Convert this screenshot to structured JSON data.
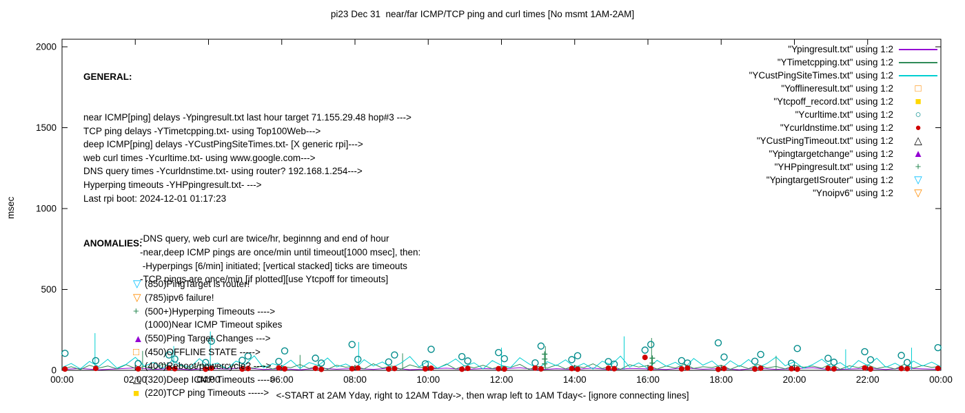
{
  "page": {
    "title": "pi23 Dec 31  near/far ICMP/TCP ping and curl times [No msmt 1AM-2AM]"
  },
  "axes": {
    "ylabel": "msec",
    "xlabel": "<-START at 2AM Yday, right to 12AM Tday->, then wrap left to 1AM Tday<- [ignore connecting lines]",
    "x_ticks": [
      "00:00",
      "02:00",
      "04:00",
      "06:00",
      "08:00",
      "10:00",
      "12:00",
      "14:00",
      "16:00",
      "18:00",
      "20:00",
      "22:00",
      "00:00"
    ],
    "y_ticks": [
      0,
      500,
      1000,
      1500,
      2000
    ]
  },
  "general": {
    "heading": "GENERAL:",
    "lines": [
      "near ICMP[ping] delays -Ypingresult.txt last hour target 71.155.29.48 hop#3 --->",
      "TCP ping delays -YTimetcpping.txt- using Top100Web--->",
      "deep ICMP[ping] delays -YCustPingSiteTimes.txt- [X generic rpi]--->",
      "web curl times -Ycurltime.txt- using www.google.com--->",
      "DNS query times -Ycurldnstime.txt- using router? 192.168.1.254--->",
      "Hyperping timeouts -YHPpingresult.txt- --->",
      "Last rpi boot: 2024-12-01 01:17:23"
    ],
    "notes": [
      "-DNS query, web curl are twice/hr, beginnng and end of hour",
      "-near,deep ICMP pings are once/min until timeout[1000 msec], then:",
      " -Hyperpings [6/min] initiated; [vertical stacked] ticks are timeouts",
      "-TCP pings are once/min [if plotted][use Ytcpoff for timeouts]"
    ]
  },
  "anomalies": {
    "heading": "ANOMALIES:",
    "items": [
      {
        "marker": "triangle-down-open",
        "color": "#00BFFF",
        "text": "(850)PingTarget is router!"
      },
      {
        "marker": "triangle-down-open",
        "color": "#FF8C00",
        "text": "(785)ipv6 failure!"
      },
      {
        "marker": "plus",
        "color": "#2E8B57",
        "text": "(500+)Hyperping Timeouts ---->"
      },
      {
        "marker": "none",
        "color": "",
        "text": "(1000)Near ICMP Timeout spikes"
      },
      {
        "marker": "triangle-filled",
        "color": "#9400D3",
        "text": "(550)Ping Target Changes --->"
      },
      {
        "marker": "square-open",
        "color": "#FF8C00",
        "text": "(450)OFFLINE STATE ----->"
      },
      {
        "marker": "none",
        "color": "",
        "text": "(400)Reboot/powercycle? ---->"
      },
      {
        "marker": "triangle-open",
        "color": "#000000",
        "text": "(320)Deep ICMP Timeouts ---->"
      },
      {
        "marker": "square-filled",
        "color": "#FFD700",
        "text": "(220)TCP ping Timeouts ----->"
      }
    ]
  },
  "legend": {
    "entries": [
      {
        "label": "\"Ypingresult.txt\" using 1:2",
        "sample": "line",
        "color": "#9400D3"
      },
      {
        "label": "\"YTimetcpping.txt\" using 1:2",
        "sample": "line",
        "color": "#2E8B57"
      },
      {
        "label": "\"YCustPingSiteTimes.txt\" using 1:2",
        "sample": "line",
        "color": "#00CED1"
      },
      {
        "label": "\"Yofflineresult.txt\" using 1:2",
        "sample": "square-open",
        "color": "#FF8C00"
      },
      {
        "label": "\"Ytcpoff_record.txt\" using 1:2",
        "sample": "square-filled",
        "color": "#FFD700"
      },
      {
        "label": "\"Ycurltime.txt\" using 1:2",
        "sample": "circle-open",
        "color": "#008B8B"
      },
      {
        "label": "\"Ycurldnstime.txt\" using 1:2",
        "sample": "circle-filled",
        "color": "#D00000"
      },
      {
        "label": "\"YCustPingTimeout.txt\" using 1:2",
        "sample": "triangle-open",
        "color": "#000000"
      },
      {
        "label": "\"Ypingtargetchange\" using 1:2",
        "sample": "triangle-filled",
        "color": "#9400D3"
      },
      {
        "label": "\"YHPpingresult.txt\" using 1:2",
        "sample": "plus",
        "color": "#2E8B57"
      },
      {
        "label": "\"YpingtargetISrouter\" using 1:2",
        "sample": "triangle-down-open",
        "color": "#00BFFF"
      },
      {
        "label": "\"Ynoipv6\" using 1:2",
        "sample": "triangle-down-open",
        "color": "#FF8C00"
      }
    ]
  },
  "chart_data": {
    "type": "line+scatter",
    "title": "pi23 Dec 31  near/far ICMP/TCP ping and curl times [No msmt 1AM-2AM]",
    "xlabel": "<-START at 2AM Yday, right to 12AM Tday->, then wrap left to 1AM Tday<- [ignore connecting lines]",
    "ylabel": "msec",
    "ylim": [
      0,
      2000
    ],
    "xlim_hours": [
      0,
      24
    ],
    "grid": false,
    "legend_position": "top-right-outside-style",
    "series": [
      {
        "name": "Ypingresult near ICMP ping delays",
        "style": "line",
        "color": "#9400D3",
        "values": [
          5,
          12,
          3,
          9,
          15,
          6,
          11,
          4,
          13,
          8,
          16,
          5,
          10,
          3,
          14,
          7,
          12,
          6,
          15,
          4,
          9,
          13,
          5,
          11,
          8,
          16,
          3,
          10,
          6,
          14,
          4,
          12,
          9,
          5,
          15,
          7,
          11,
          3,
          13,
          6,
          10,
          16,
          4,
          8,
          12,
          5,
          14,
          9,
          6
        ]
      },
      {
        "name": "YTimetcpping TCP ping delays",
        "style": "line",
        "color": "#2E8B57",
        "values": [
          8,
          22,
          5,
          31,
          14,
          27,
          9,
          35,
          12,
          24,
          6,
          40,
          18,
          29,
          7,
          33,
          15,
          26,
          10,
          38,
          20,
          13,
          30,
          8,
          25,
          16,
          36,
          11,
          28,
          6,
          32,
          19,
          24,
          9,
          41,
          14,
          27,
          7,
          34,
          17,
          23,
          12,
          39,
          8,
          29,
          15,
          31,
          10,
          26,
          18,
          37,
          6,
          24,
          13,
          33,
          9,
          28,
          16,
          40,
          11,
          25,
          7,
          35,
          20,
          30,
          8,
          27,
          14,
          38,
          12,
          22,
          17,
          32,
          6,
          29,
          10,
          36,
          15,
          24,
          9,
          31,
          19,
          26,
          13,
          41,
          7,
          28,
          16,
          34,
          11,
          23,
          8,
          37,
          14,
          30,
          18,
          25
        ],
        "spikes": [
          [
            2.2,
            120
          ],
          [
            6.5,
            95
          ],
          [
            9.3,
            105
          ],
          [
            13.2,
            150
          ],
          [
            16.1,
            200
          ],
          [
            19.5,
            90
          ]
        ]
      },
      {
        "name": "YCustPingSiteTimes deep ICMP ping delays",
        "style": "line",
        "color": "#00CED1",
        "values": [
          18,
          42,
          9,
          55,
          23,
          68,
          14,
          37,
          80,
          26,
          49,
          11,
          61,
          33,
          19,
          72,
          28,
          45,
          8,
          57,
          36,
          90,
          16,
          41,
          24,
          63,
          12,
          48,
          30,
          76,
          21,
          39,
          10,
          66,
          27,
          52,
          15,
          44,
          85,
          22,
          58,
          13,
          35,
          70,
          25,
          47,
          9,
          60,
          31,
          18,
          78,
          40,
          12,
          53,
          29,
          65,
          17,
          43,
          8,
          56,
          34,
          88,
          20,
          46,
          11,
          62,
          26,
          50,
          14,
          73,
          32,
          58,
          10,
          59,
          24,
          67,
          16,
          42,
          82,
          28,
          54,
          12,
          36,
          69,
          23,
          48,
          9,
          61,
          30,
          75,
          19,
          44,
          13,
          57,
          27,
          51,
          22
        ],
        "spikes": [
          [
            0.9,
            230
          ],
          [
            3.05,
            150
          ],
          [
            4.05,
            240
          ],
          [
            8.1,
            175
          ],
          [
            12.0,
            140
          ],
          [
            15.35,
            210
          ],
          [
            21.4,
            130
          ],
          [
            23.2,
            140
          ]
        ]
      },
      {
        "name": "Ycurltime web curl times",
        "style": "points",
        "marker": "circle-open",
        "color": "#008B8B",
        "t": [
          0.08,
          0.92,
          2.08,
          2.92,
          3.08,
          3.92,
          4.08,
          4.92,
          5.08,
          5.92,
          6.08,
          6.92,
          7.08,
          7.92,
          8.08,
          8.92,
          9.08,
          9.92,
          10.08,
          10.92,
          11.08,
          11.92,
          12.08,
          12.92,
          13.08,
          13.92,
          14.08,
          14.92,
          15.08,
          15.92,
          16.08,
          16.92,
          17.08,
          17.92,
          18.08,
          18.92,
          19.08,
          19.92,
          20.08,
          20.92,
          21.08,
          21.92,
          22.08,
          22.92,
          23.08,
          23.92
        ],
        "v": [
          105,
          60,
          42,
          95,
          70,
          48,
          180,
          62,
          88,
          55,
          120,
          75,
          45,
          160,
          68,
          52,
          95,
          40,
          130,
          85,
          58,
          110,
          72,
          46,
          150,
          66,
          90,
          54,
          38,
          125,
          160,
          60,
          45,
          170,
          82,
          56,
          98,
          44,
          135,
          74,
          50,
          115,
          65,
          92,
          48,
          140
        ]
      },
      {
        "name": "Ycurldnstime DNS query times",
        "style": "points",
        "marker": "circle-filled",
        "color": "#D00000",
        "t": [
          0.08,
          0.92,
          2.08,
          2.92,
          3.08,
          3.92,
          4.08,
          4.92,
          5.08,
          5.92,
          6.08,
          6.92,
          7.08,
          7.92,
          8.08,
          8.92,
          9.08,
          9.92,
          10.08,
          10.92,
          11.08,
          11.92,
          12.08,
          12.92,
          13.08,
          13.92,
          14.08,
          14.92,
          15.08,
          15.92,
          16.08,
          16.92,
          17.08,
          17.92,
          18.08,
          18.92,
          19.08,
          19.92,
          20.08,
          20.92,
          21.08,
          21.92,
          22.08,
          22.92,
          23.08,
          23.92
        ],
        "v": [
          8,
          12,
          9,
          14,
          10,
          7,
          13,
          8,
          11,
          15,
          9,
          12,
          6,
          10,
          14,
          8,
          11,
          9,
          13,
          7,
          12,
          10,
          8,
          14,
          9,
          11,
          7,
          13,
          10,
          80,
          12,
          9,
          14,
          6,
          11,
          8,
          13,
          10,
          7,
          12,
          9,
          15,
          8,
          11,
          10,
          12
        ]
      },
      {
        "name": "YHPpingresult hyperping timeout ticks",
        "style": "points",
        "marker": "plus",
        "color": "#2E8B57",
        "t": [
          13.18,
          13.18,
          13.18,
          16.12,
          16.12
        ],
        "v": [
          40,
          70,
          100,
          45,
          75
        ]
      },
      {
        "name": "Yofflineresult offline state",
        "style": "points",
        "marker": "square-open",
        "color": "#FF8C00",
        "t": [],
        "v": []
      },
      {
        "name": "Ytcpoff_record TCP ping timeouts",
        "style": "points",
        "marker": "square-filled",
        "color": "#FFD700",
        "t": [],
        "v": []
      },
      {
        "name": "YCustPingTimeout deep ICMP timeouts",
        "style": "points",
        "marker": "triangle-open",
        "color": "#000000",
        "t": [],
        "v": []
      },
      {
        "name": "Ypingtargetchange ping target changes",
        "style": "points",
        "marker": "triangle-filled",
        "color": "#9400D3",
        "t": [],
        "v": []
      },
      {
        "name": "YpingtargetISrouter",
        "style": "points",
        "marker": "triangle-down-open",
        "color": "#00BFFF",
        "t": [],
        "v": []
      },
      {
        "name": "Ynoipv6 ipv6 failure",
        "style": "points",
        "marker": "triangle-down-open",
        "color": "#FF8C00",
        "t": [],
        "v": []
      }
    ]
  }
}
